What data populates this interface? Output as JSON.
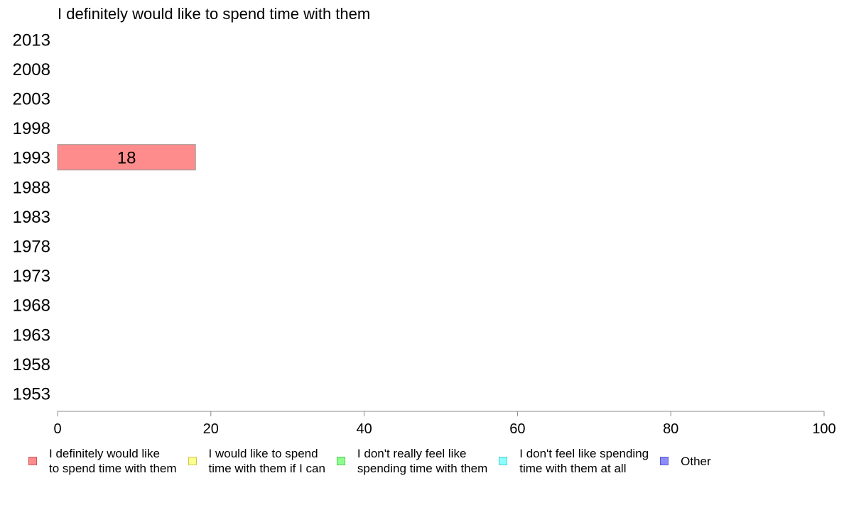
{
  "chart_data": {
    "type": "bar",
    "orientation": "horizontal",
    "title": "I definitely would like to spend time with them",
    "categories": [
      "2013",
      "2008",
      "2003",
      "1998",
      "1993",
      "1988",
      "1983",
      "1978",
      "1973",
      "1968",
      "1963",
      "1958",
      "1953"
    ],
    "series": [
      {
        "name": "I definitely would like\nto spend time with them",
        "color": "#ff8c8c",
        "values": [
          null,
          null,
          null,
          null,
          18,
          null,
          null,
          null,
          null,
          null,
          null,
          null,
          null
        ]
      }
    ],
    "xlim": [
      0,
      100
    ],
    "xticks": [
      "0",
      "20",
      "40",
      "60",
      "80",
      "100"
    ],
    "grid": false,
    "legend_position": "bottom"
  },
  "legend": [
    {
      "label": "I definitely would like\nto spend time with them",
      "color": "#ff8c8c",
      "border": "#c85a5a"
    },
    {
      "label": "I would like to spend\ntime with them if I can",
      "color": "#ffff8c",
      "border": "#c8c85a"
    },
    {
      "label": "I don't really feel like\nspending time with them",
      "color": "#8cff8c",
      "border": "#5ac85a"
    },
    {
      "label": "I don't feel like spending\ntime with them at all",
      "color": "#8cffff",
      "border": "#5ac8c8"
    },
    {
      "label": "Other",
      "color": "#8c8cff",
      "border": "#5a5ac8"
    }
  ]
}
